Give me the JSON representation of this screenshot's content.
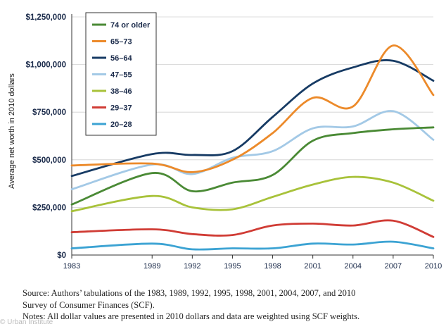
{
  "chart_data": {
    "type": "line",
    "title": "",
    "xlabel": "",
    "ylabel": "Average net worth in 2010 dollars",
    "ylim": [
      0,
      1250000
    ],
    "yticks": [
      0,
      250000,
      500000,
      750000,
      1000000,
      1250000
    ],
    "ytick_labels": [
      "$0",
      "$250,000",
      "$500,000",
      "$750,000",
      "$1,000,000",
      "$1,250,000"
    ],
    "x": [
      1983,
      1989,
      1992,
      1995,
      1998,
      2001,
      2004,
      2007,
      2010
    ],
    "xtick_labels": [
      "1983",
      "1989",
      "1992",
      "1995",
      "1998",
      "2001",
      "2004",
      "2007",
      "2010"
    ],
    "legend_position": "top-left",
    "series": [
      {
        "name": "74 or older",
        "color": "#4a8a35",
        "values": [
          265000,
          430000,
          335000,
          380000,
          420000,
          600000,
          640000,
          660000,
          670000
        ]
      },
      {
        "name": "65–73",
        "color": "#ec8a2a",
        "values": [
          470000,
          480000,
          435000,
          500000,
          640000,
          825000,
          780000,
          1100000,
          840000
        ]
      },
      {
        "name": "56–64",
        "color": "#173b64",
        "values": [
          415000,
          530000,
          525000,
          545000,
          725000,
          900000,
          985000,
          1020000,
          915000
        ]
      },
      {
        "name": "47–55",
        "color": "#a3c9e6",
        "values": [
          345000,
          475000,
          425000,
          510000,
          545000,
          665000,
          675000,
          755000,
          605000
        ]
      },
      {
        "name": "38–46",
        "color": "#a8c23a",
        "values": [
          230000,
          310000,
          250000,
          240000,
          305000,
          370000,
          410000,
          380000,
          285000
        ]
      },
      {
        "name": "29–37",
        "color": "#d03c35",
        "values": [
          120000,
          135000,
          110000,
          105000,
          155000,
          165000,
          155000,
          180000,
          95000
        ]
      },
      {
        "name": "20–28",
        "color": "#3ca3d3",
        "values": [
          35000,
          60000,
          30000,
          35000,
          35000,
          60000,
          55000,
          70000,
          35000
        ]
      }
    ]
  },
  "notes": {
    "source_line1": "Source: Authors’ tabulations of the 1983, 1989, 1992, 1995, 1998, 2001, 2004, 2007, and 2010",
    "source_line2": "Survey of Consumer Finances (SCF).",
    "notes_line": "Notes: All dollar values are presented in 2010 dollars and data are weighted using SCF weights."
  },
  "watermark": "© Urban Institute"
}
